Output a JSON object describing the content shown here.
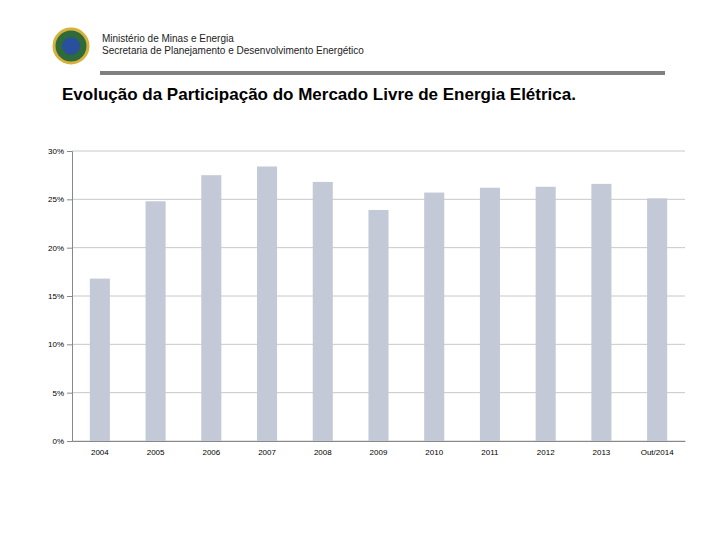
{
  "header": {
    "lines": [
      "Ministério de Minas e Energia",
      "Secretaria de Planejamento e Desenvolvimento Energético"
    ]
  },
  "chart_data": {
    "type": "bar",
    "title": "Evolução da Participação do Mercado Livre de Energia Elétrica.",
    "categories": [
      "2004",
      "2005",
      "2006",
      "2007",
      "2008",
      "2009",
      "2010",
      "2011",
      "2012",
      "2013",
      "Out/2014"
    ],
    "values": [
      16.8,
      24.8,
      27.5,
      28.4,
      26.8,
      23.9,
      25.7,
      26.2,
      26.3,
      26.6,
      25.1
    ],
    "color": "#c3c9d6",
    "ylim": [
      0,
      30
    ],
    "yticks": [
      {
        "value": 0,
        "label": "0%"
      },
      {
        "value": 5,
        "label": "5%"
      },
      {
        "value": 10,
        "label": "10%"
      },
      {
        "value": 15,
        "label": "15%"
      },
      {
        "value": 20,
        "label": "20%"
      },
      {
        "value": 25,
        "label": "25%"
      },
      {
        "value": 30,
        "label": "30%"
      }
    ],
    "grid": true
  }
}
